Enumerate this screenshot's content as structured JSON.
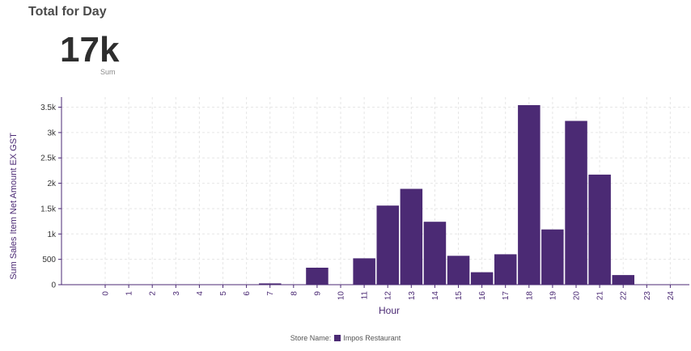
{
  "title": "Total for Day",
  "kpi": {
    "value": "17k",
    "label": "Sum"
  },
  "legend": {
    "title": "Store Name:",
    "entry": "Impos Restaurant"
  },
  "colors": {
    "bar": "#4b2a74",
    "axis": "#4b2a74",
    "grid": "#e6e6e6",
    "tick_text": "#4b2a74"
  },
  "chart_data": {
    "type": "bar",
    "xlabel": "Hour",
    "ylabel": "Sum Sales Item Net Amount EX GST",
    "categories": [
      "0",
      "1",
      "2",
      "3",
      "4",
      "5",
      "6",
      "7",
      "8",
      "9",
      "10",
      "11",
      "12",
      "13",
      "14",
      "15",
      "16",
      "17",
      "18",
      "19",
      "20",
      "21",
      "22",
      "23",
      "24"
    ],
    "series": [
      {
        "name": "Impos Restaurant",
        "values": [
          0,
          0,
          0,
          0,
          0,
          0,
          0,
          25,
          0,
          335,
          0,
          520,
          1560,
          1890,
          1240,
          570,
          245,
          600,
          3540,
          1090,
          3230,
          2170,
          190,
          0,
          0
        ]
      }
    ],
    "ylim": [
      0,
      3700
    ],
    "yticks": [
      0,
      500,
      1000,
      1500,
      2000,
      2500,
      3000,
      3500
    ],
    "ytick_labels": [
      "0",
      "500",
      "1k",
      "1.5k",
      "2k",
      "2.5k",
      "3k",
      "3.5k"
    ],
    "grid": true,
    "legend_position": "bottom"
  }
}
